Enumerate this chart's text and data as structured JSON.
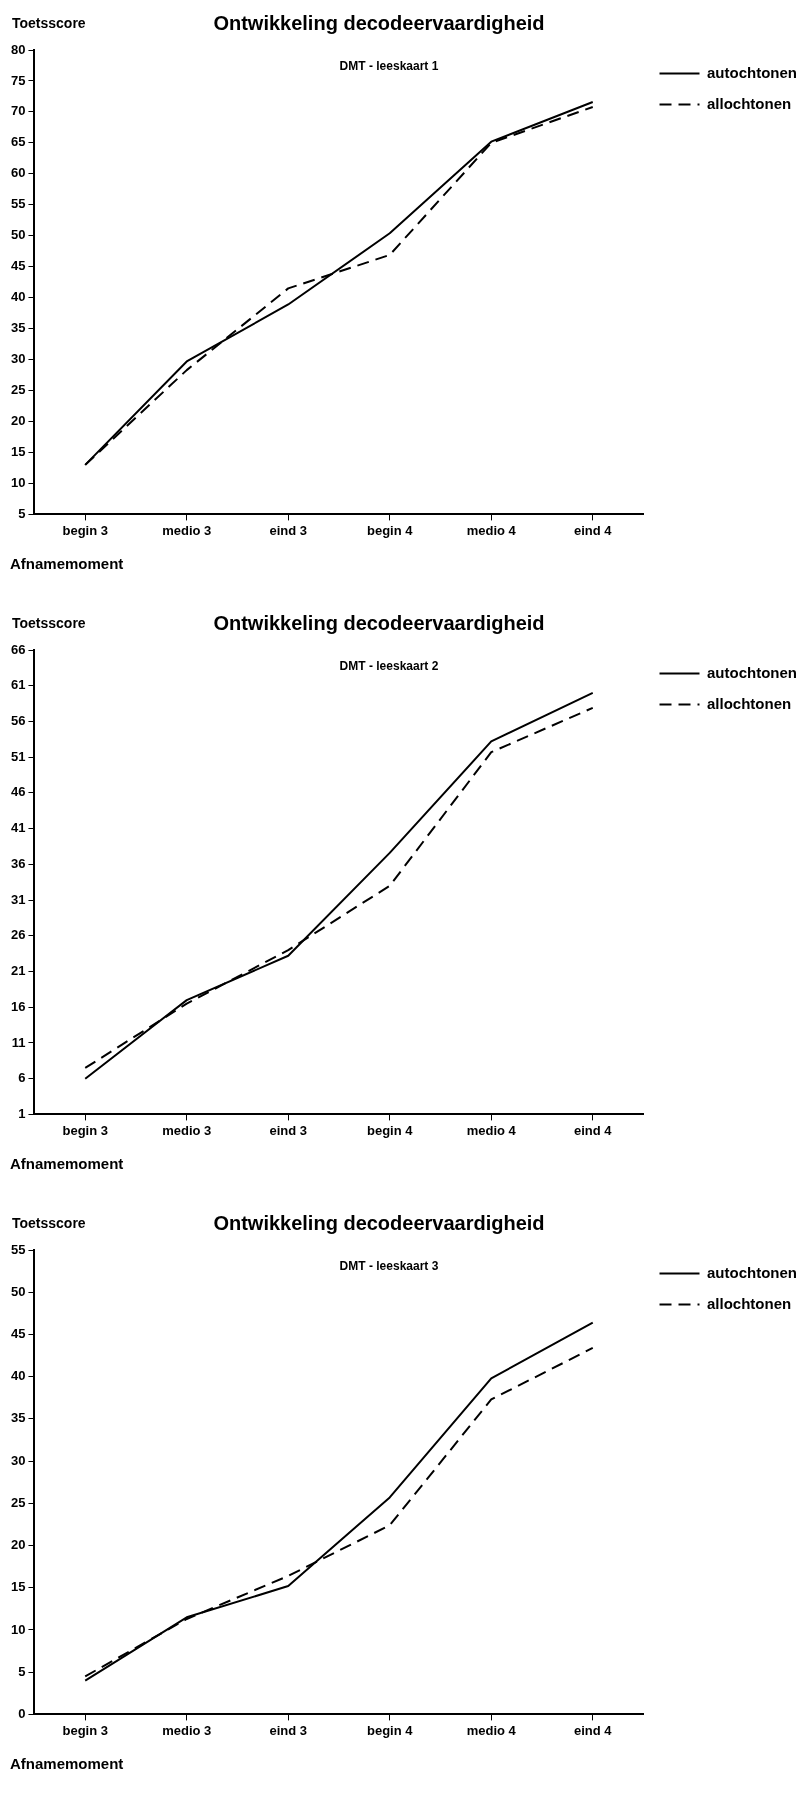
{
  "chart_data": [
    {
      "type": "line",
      "title": "Ontwikkeling decodeervaardigheid",
      "subtitle": "DMT - leeskaart 1",
      "xlabel": "Afnamemoment",
      "ylabel": "Toetsscore",
      "categories": [
        "begin 3",
        "medio 3",
        "eind 3",
        "begin 4",
        "medio 4",
        "eind 4"
      ],
      "ylim": [
        5,
        80
      ],
      "yticks": [
        5,
        10,
        15,
        20,
        25,
        30,
        35,
        40,
        45,
        50,
        55,
        60,
        65,
        70,
        75,
        80
      ],
      "legend": "top right",
      "marker": "none",
      "series": [
        {
          "name": "autochtonen",
          "color": "#000000",
          "line_style": "solid",
          "values": [
            13,
            29.7,
            38.9,
            50.4,
            65.2,
            71.6
          ]
        },
        {
          "name": "allochtonen",
          "color": "#000000",
          "line_style": "dashed",
          "values": [
            13,
            28.3,
            41.5,
            46.9,
            65,
            70.8
          ]
        }
      ]
    },
    {
      "type": "line",
      "title": "Ontwikkeling decodeervaardigheid",
      "subtitle": "DMT - leeskaart 2",
      "xlabel": "Afnamemoment",
      "ylabel": "Toetsscore",
      "categories": [
        "begin 3",
        "medio 3",
        "eind 3",
        "begin 4",
        "medio 4",
        "eind 4"
      ],
      "ylim": [
        1,
        66
      ],
      "yticks": [
        1,
        6,
        11,
        16,
        21,
        26,
        31,
        36,
        41,
        46,
        51,
        56,
        61,
        66
      ],
      "legend": "top right",
      "marker": "none",
      "series": [
        {
          "name": "autochtonen",
          "color": "#000000",
          "line_style": "solid",
          "values": [
            6,
            17,
            23.2,
            37.6,
            53.2,
            60
          ]
        },
        {
          "name": "allochtonen",
          "color": "#000000",
          "line_style": "dashed",
          "values": [
            7.5,
            16.5,
            24,
            33,
            51.7,
            57.9
          ]
        }
      ]
    },
    {
      "type": "line",
      "title": "Ontwikkeling decodeervaardigheid",
      "subtitle": "DMT - leeskaart 3",
      "xlabel": "Afnamemoment",
      "ylabel": "Toetsscore",
      "categories": [
        "begin 3",
        "medio 3",
        "eind 3",
        "begin 4",
        "medio 4",
        "eind 4"
      ],
      "ylim": [
        0,
        55
      ],
      "yticks": [
        0,
        5,
        10,
        15,
        20,
        25,
        30,
        35,
        40,
        45,
        50,
        55
      ],
      "legend": "top right",
      "marker": "none",
      "series": [
        {
          "name": "autochtonen",
          "color": "#000000",
          "line_style": "solid",
          "values": [
            4,
            11.5,
            15.2,
            25.7,
            39.8,
            46.4
          ]
        },
        {
          "name": "allochtonen",
          "color": "#000000",
          "line_style": "dashed",
          "values": [
            4.5,
            11.3,
            16.4,
            22.4,
            37.3,
            43.4
          ]
        }
      ]
    }
  ]
}
